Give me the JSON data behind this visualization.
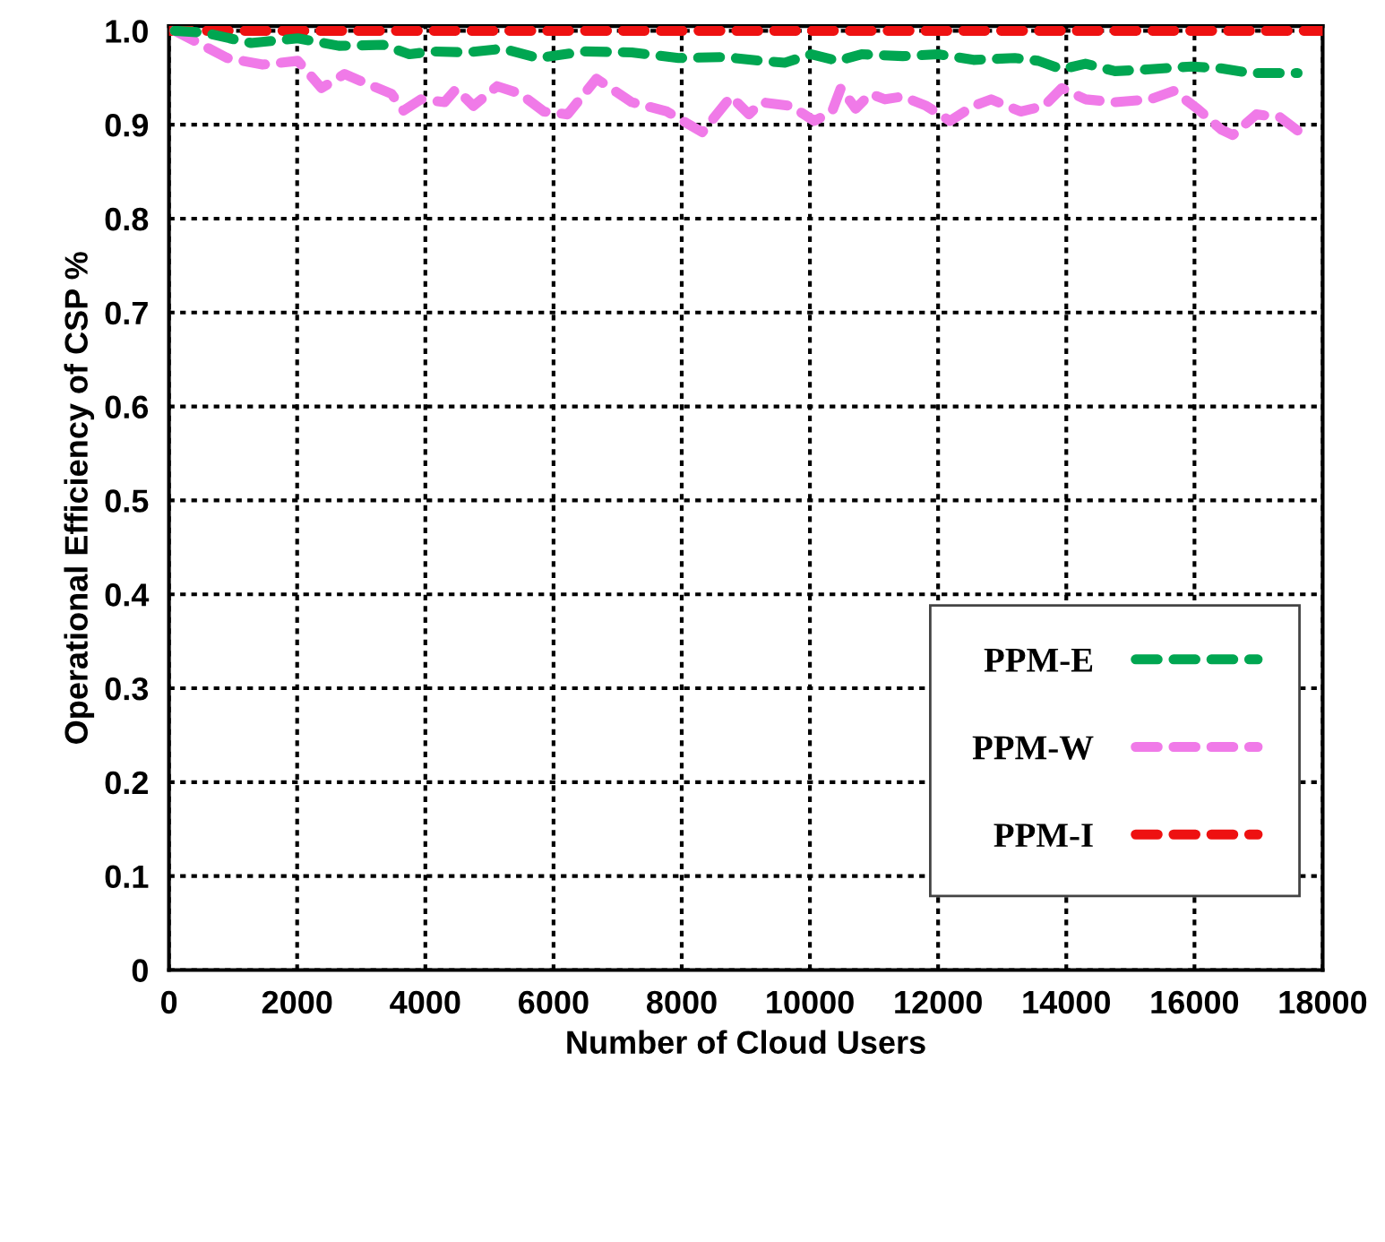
{
  "chart_data": {
    "type": "line",
    "xlabel": "Number of Cloud Users",
    "ylabel": "Operational Efficiency of CSP %",
    "xlim": [
      0,
      18000
    ],
    "xticks": [
      0,
      2000,
      4000,
      6000,
      8000,
      10000,
      12000,
      14000,
      16000,
      18000
    ],
    "ylim": [
      0,
      1.005
    ],
    "yticks": [
      0,
      0.1,
      0.2,
      0.3,
      0.4,
      0.5,
      0.6,
      0.7,
      0.8,
      0.9,
      {
        "value": 1.0,
        "label": "1.0"
      }
    ],
    "grid": true,
    "legend": "bottom right",
    "line_style": "dashed",
    "marker": "none",
    "series": [
      {
        "name": "PPM-E",
        "color": "#00a651",
        "x": [
          90,
          550,
          1280,
          2010,
          2650,
          3340,
          3750,
          4110,
          4660,
          5210,
          5760,
          6490,
          7220,
          7950,
          8680,
          9241,
          9609,
          10023,
          10437,
          10805,
          11448,
          12000,
          12552,
          13195,
          13563,
          13931,
          14299,
          14759,
          15310,
          15954,
          16414,
          16874,
          17609
        ],
        "values": [
          1.0,
          0.998,
          0.987,
          0.992,
          0.984,
          0.985,
          0.975,
          0.978,
          0.977,
          0.981,
          0.971,
          0.978,
          0.977,
          0.971,
          0.972,
          0.968,
          0.966,
          0.975,
          0.968,
          0.975,
          0.973,
          0.975,
          0.969,
          0.971,
          0.968,
          0.959,
          0.965,
          0.957,
          0.959,
          0.962,
          0.96,
          0.955,
          0.955
        ]
      },
      {
        "name": "PPM-W",
        "color": "#f07ae8",
        "x": [
          90,
          460,
          910,
          1460,
          2010,
          2380,
          2740,
          3110,
          3470,
          3660,
          3930,
          4300,
          4480,
          4750,
          5120,
          5480,
          5850,
          6220,
          6670,
          7220,
          7770,
          8320,
          8770,
          9050,
          9241,
          9701,
          10069,
          10345,
          10483,
          10713,
          10943,
          11172,
          11448,
          11816,
          12184,
          12552,
          12828,
          13287,
          13655,
          13931,
          14299,
          14759,
          15310,
          15678,
          16046,
          16414,
          16598,
          16966,
          17333,
          17701
        ],
        "values": [
          1.0,
          0.987,
          0.971,
          0.964,
          0.968,
          0.939,
          0.954,
          0.943,
          0.933,
          0.915,
          0.927,
          0.924,
          0.938,
          0.92,
          0.941,
          0.933,
          0.914,
          0.911,
          0.949,
          0.924,
          0.914,
          0.892,
          0.93,
          0.911,
          0.924,
          0.92,
          0.904,
          0.914,
          0.939,
          0.917,
          0.933,
          0.927,
          0.93,
          0.92,
          0.904,
          0.92,
          0.927,
          0.914,
          0.92,
          0.939,
          0.927,
          0.924,
          0.927,
          0.936,
          0.917,
          0.895,
          0.889,
          0.911,
          0.908,
          0.889
        ]
      },
      {
        "name": "PPM-I",
        "color": "#ee1111",
        "x": [
          0,
          18000
        ],
        "values": [
          1.0,
          1.0
        ]
      }
    ]
  }
}
